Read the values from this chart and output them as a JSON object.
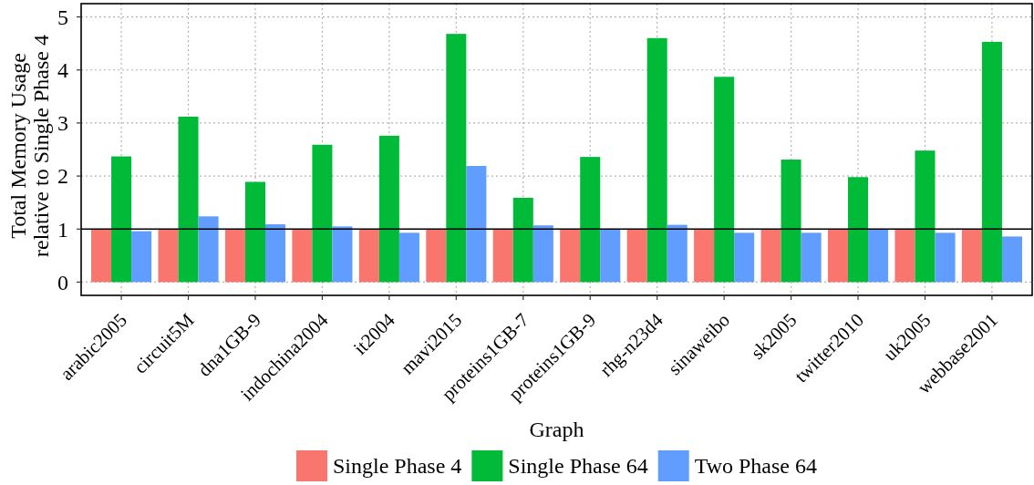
{
  "chart_data": {
    "type": "bar",
    "xlabel": "Graph",
    "ylabel": "Total Memory Usage\nrelative to Single Phase 4",
    "categories": [
      "arabic2005",
      "circuit5M",
      "dna1GB-9",
      "indochina2004",
      "it2004",
      "mavi2015",
      "proteins1GB-7",
      "proteins1GB-9",
      "rhg-n23d4",
      "sinaweibo",
      "sk2005",
      "twitter2010",
      "uk2005",
      "webbase2001"
    ],
    "series": [
      {
        "name": "Single Phase 4",
        "color": "#f8766d",
        "values": [
          1,
          1,
          1,
          1,
          1,
          1,
          1,
          1,
          1,
          1,
          1,
          1,
          1,
          1
        ]
      },
      {
        "name": "Single Phase 64",
        "color": "#00ba38",
        "values": [
          2.37,
          3.12,
          1.89,
          2.59,
          2.76,
          4.68,
          1.59,
          2.36,
          4.6,
          3.87,
          2.31,
          1.98,
          2.48,
          4.53
        ]
      },
      {
        "name": "Two Phase 64",
        "color": "#619cff",
        "values": [
          0.96,
          1.24,
          1.09,
          1.05,
          0.93,
          2.19,
          1.07,
          1.0,
          1.08,
          0.93,
          0.93,
          1.0,
          0.93,
          0.86
        ]
      }
    ],
    "ylim": [
      -0.25,
      5.25
    ],
    "yticks": [
      0,
      1,
      2,
      3,
      4,
      5
    ],
    "ref_lines": [
      {
        "axis": "y",
        "value": 1,
        "color": "#000000"
      }
    ],
    "grid": true,
    "legend": "bottom"
  }
}
